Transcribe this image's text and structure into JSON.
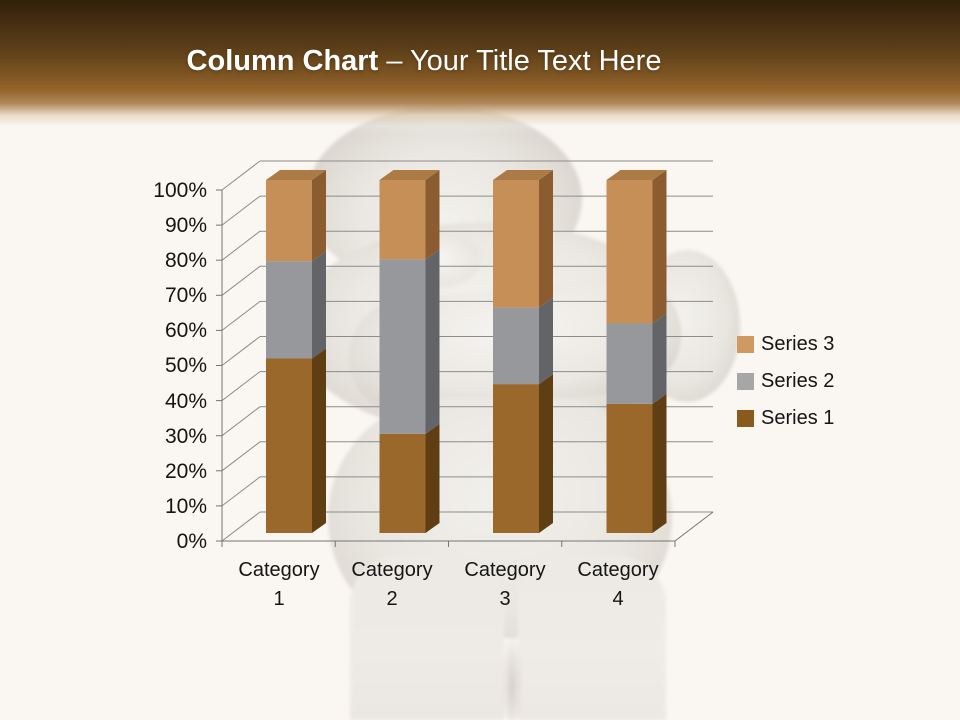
{
  "slide": {
    "header": {
      "title_bold": "Column Chart",
      "title_rest": "– Your Title Text Here"
    },
    "background_color": "#faf6f1",
    "header_accent_dark": "#2f2008",
    "header_accent_brown": "#96672d"
  },
  "chart_data": {
    "type": "bar",
    "subtype": "3d-100-percent-stacked-column",
    "title": "",
    "categories": [
      "Category 1",
      "Category 2",
      "Category 3",
      "Category 4"
    ],
    "series": [
      {
        "name": "Series 1",
        "values": [
          4.3,
          2.5,
          3.5,
          4.5
        ],
        "percent_of_total": [
          49.4,
          28.1,
          42.2,
          36.6
        ],
        "front": "#9A682B",
        "side": "#603E13",
        "top": "#7E551F",
        "legend_swatch": "#8A591C"
      },
      {
        "name": "Series 2",
        "values": [
          2.4,
          4.4,
          1.8,
          2.8
        ],
        "percent_of_total": [
          27.6,
          49.4,
          21.7,
          22.8
        ],
        "front": "#97989B",
        "side": "#636468",
        "top": "#7E8083",
        "legend_swatch": "#A6A6A6"
      },
      {
        "name": "Series 3",
        "values": [
          2.0,
          2.0,
          3.0,
          5.0
        ],
        "percent_of_total": [
          23.0,
          22.5,
          36.1,
          40.7
        ],
        "front": "#C78F58",
        "side": "#8A5C30",
        "top": "#AC7B45",
        "legend_swatch": "#CE9A62"
      }
    ],
    "y_axis": {
      "min": 0,
      "max": 100,
      "unit": "%",
      "ticks": [
        "0%",
        "10%",
        "20%",
        "30%",
        "40%",
        "50%",
        "60%",
        "70%",
        "80%",
        "90%",
        "100%"
      ]
    },
    "legend": {
      "position": "right",
      "entries": [
        "Series 3",
        "Series 2",
        "Series 1"
      ]
    },
    "gridlines": true,
    "gridline_color": "#8c8c8c",
    "axis_color": "#757575",
    "label_color": "#151515"
  }
}
